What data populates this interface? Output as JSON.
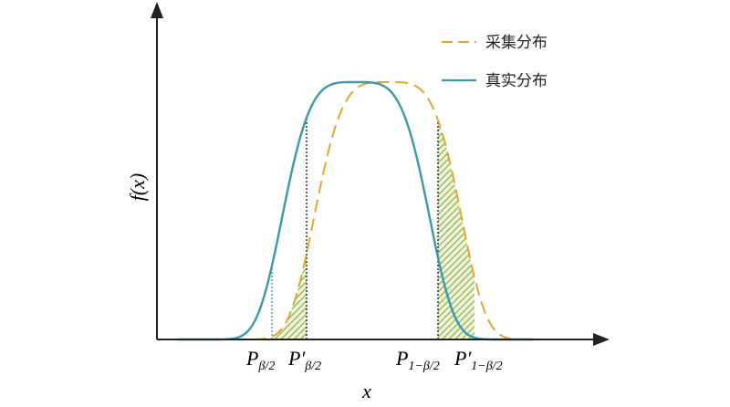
{
  "axes": {
    "y_label": "f(x)",
    "x_label": "x"
  },
  "legend": [
    "采集分布",
    "真实分布"
  ],
  "markers": [
    {
      "main": "P",
      "sub": "β/2"
    },
    {
      "main": "P′",
      "sub": "β/2"
    },
    {
      "main": "P",
      "sub": "1−β/2"
    },
    {
      "main": "P′",
      "sub": "1−β/2"
    }
  ]
}
